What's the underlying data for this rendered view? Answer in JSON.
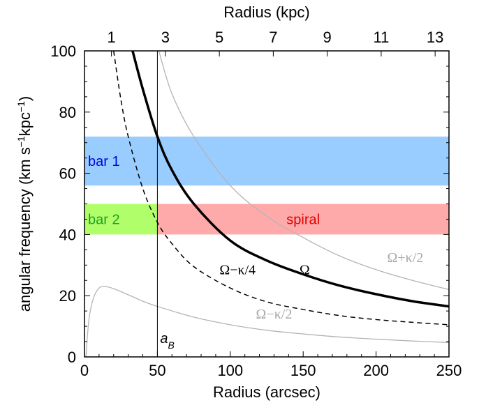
{
  "chart_data": {
    "type": "line",
    "xlabel": "Radius (arcsec)",
    "ylabel_parts": [
      "angular frequency (km s",
      "−1",
      "kpc",
      "−1",
      ")"
    ],
    "top_xlabel": "Radius (kpc)",
    "xlim": [
      0,
      250
    ],
    "ylim": [
      0,
      100
    ],
    "x_ticks": [
      "0",
      "50",
      "100",
      "150",
      "200",
      "250"
    ],
    "x_tick_values": [
      0,
      50,
      100,
      150,
      200,
      250
    ],
    "y_ticks": [
      "0",
      "20",
      "40",
      "60",
      "80",
      "100"
    ],
    "y_tick_values": [
      0,
      20,
      40,
      60,
      80,
      100
    ],
    "top_ticks": [
      "1",
      "3",
      "5",
      "7",
      "9",
      "11",
      "13"
    ],
    "top_tick_arcsec": [
      18.5,
      55.5,
      92.5,
      129.5,
      166.5,
      203.5,
      240.5
    ],
    "bands": [
      {
        "label": "bar 1",
        "x": [
          0,
          250
        ],
        "y": [
          56,
          72
        ],
        "fill": "#99ccff",
        "text_color": "#0000e0"
      },
      {
        "label": "bar 2",
        "x": [
          0,
          50
        ],
        "y": [
          40,
          50
        ],
        "fill": "#b0ff6a",
        "text_color": "#1fa01f"
      },
      {
        "label": "spiral",
        "x": [
          50,
          250
        ],
        "y": [
          40,
          50
        ],
        "fill": "#ffaaaa",
        "text_color": "#e00000"
      }
    ],
    "vline": {
      "x": 50,
      "label": "a",
      "label_sub": "B"
    },
    "series": [
      {
        "label": "Ω",
        "style": "thick-solid",
        "color": "#000000",
        "x": [
          33,
          40,
          50,
          60,
          75,
          100,
          125,
          150,
          175,
          200,
          225,
          250
        ],
        "y": [
          100,
          87.5,
          72,
          61,
          50,
          38,
          31.5,
          27,
          23.3,
          20.5,
          18.2,
          16.5
        ]
      },
      {
        "label": "Ω−κ/4",
        "style": "dashed",
        "color": "#000000",
        "x": [
          20,
          25,
          30,
          40,
          50,
          60,
          75,
          100,
          125,
          150,
          175,
          200,
          225,
          250
        ],
        "y": [
          100,
          84,
          72,
          55,
          44,
          37,
          29.5,
          22.5,
          18,
          15.5,
          13.5,
          12.2,
          11.3,
          10.5
        ]
      },
      {
        "label": "Ω+κ/2",
        "style": "thin-solid",
        "color": "#b4b4b4",
        "x": [
          51,
          60,
          75,
          100,
          125,
          150,
          175,
          200,
          225,
          250
        ],
        "y": [
          100,
          86,
          72,
          56,
          46,
          39,
          33,
          28.5,
          25,
          22
        ]
      },
      {
        "label": "Ω−κ/2",
        "style": "thin-solid",
        "color": "#b4b4b4",
        "x": [
          1,
          3,
          6,
          10,
          14,
          20,
          30,
          40,
          50,
          75,
          100,
          125,
          150,
          175,
          200,
          225,
          250
        ],
        "y": [
          0,
          12,
          19,
          22.5,
          23,
          22.3,
          20.3,
          18.2,
          16.5,
          13,
          10.5,
          8.7,
          7.5,
          6.5,
          5.8,
          5.2,
          4.7
        ]
      }
    ],
    "curve_labels": [
      {
        "label": "Ω−κ/4",
        "x": 105,
        "y": 27,
        "color": "#000000"
      },
      {
        "label": "Ω",
        "x": 151,
        "y": 27,
        "color": "#000000"
      },
      {
        "label": "Ω+κ/2",
        "x": 220,
        "y": 31,
        "color": "#a8a8a8"
      },
      {
        "label": "Ω−κ/2",
        "x": 130,
        "y": 12.5,
        "color": "#a8a8a8"
      }
    ]
  }
}
